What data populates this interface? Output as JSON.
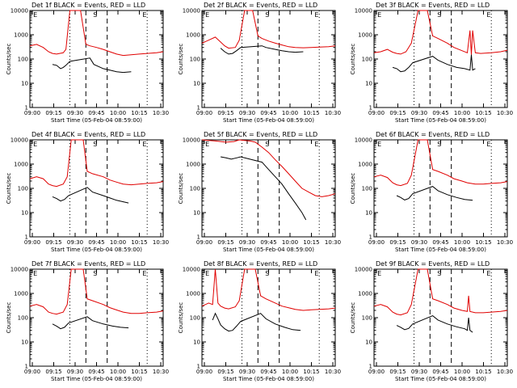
{
  "figure": {
    "xtick_labels": [
      "09:00",
      "09:15",
      "09:30",
      "09:45",
      "10:00",
      "10:15",
      "10:30"
    ],
    "ytick_labels": [
      "1",
      "10",
      "100",
      "1000",
      "10000"
    ],
    "xlabel": "Start Time (05-Feb-04 08:59:00)",
    "ylabel": "Counts/sec",
    "series_legend": {
      "black": "Events",
      "red": "LLD"
    },
    "colors": {
      "events": "#000000",
      "lld": "#e00000",
      "axes": "#000000"
    }
  },
  "chart_data": [
    {
      "type": "line",
      "title": "Det 1f BLACK = Events, RED = LLD",
      "markers": [
        "E",
        "S",
        "E"
      ],
      "xlabel": "Start Time (05-Feb-04 08:59:00)",
      "ylabel": "Counts/sec",
      "ylim": [
        1,
        10000
      ],
      "yscale": "log",
      "xlim_min": [
        0,
        100
      ],
      "series": [
        {
          "color": "red",
          "x": [
            0,
            5,
            10,
            14,
            17,
            20,
            25,
            27,
            30,
            38,
            42,
            45,
            50,
            55,
            60,
            65,
            70,
            76,
            82,
            88,
            95,
            100
          ],
          "values": [
            350,
            400,
            300,
            200,
            170,
            160,
            180,
            250,
            10000,
            10000,
            400,
            350,
            300,
            250,
            200,
            160,
            140,
            150,
            160,
            170,
            180,
            200
          ]
        },
        {
          "color": "black",
          "x": [
            17,
            20,
            23,
            25,
            27,
            30,
            45,
            48,
            55,
            60,
            65,
            70,
            76
          ],
          "values": [
            60,
            55,
            40,
            45,
            55,
            80,
            110,
            60,
            40,
            35,
            30,
            28,
            30
          ]
        }
      ]
    },
    {
      "type": "line",
      "title": "Det 2f BLACK = Events, RED = LLD",
      "markers": [
        "E",
        "S",
        "E"
      ],
      "xlabel": "Start Time (05-Feb-04 08:59:00)",
      "ylabel": "Counts/sec",
      "ylim": [
        1,
        10000
      ],
      "yscale": "log",
      "xlim_min": [
        0,
        100
      ],
      "series": [
        {
          "color": "red",
          "x": [
            0,
            5,
            10,
            14,
            17,
            20,
            25,
            28,
            32,
            38,
            42,
            45,
            50,
            55,
            60,
            65,
            70,
            76,
            82,
            88,
            95,
            100
          ],
          "values": [
            450,
            600,
            800,
            500,
            350,
            280,
            300,
            600,
            10000,
            10000,
            900,
            700,
            550,
            450,
            380,
            320,
            300,
            290,
            300,
            310,
            320,
            350
          ]
        },
        {
          "color": "black",
          "x": [
            14,
            17,
            20,
            23,
            26,
            29,
            45,
            48,
            55,
            60,
            65,
            70,
            76
          ],
          "values": [
            280,
            200,
            160,
            170,
            220,
            300,
            350,
            300,
            250,
            220,
            200,
            190,
            200
          ]
        }
      ]
    },
    {
      "type": "line",
      "title": "Det 3f BLACK = Events, RED = LLD",
      "markers": [
        "E",
        "S",
        "E"
      ],
      "xlabel": "Start Time (05-Feb-04 08:59:00)",
      "ylabel": "Counts/sec",
      "ylim": [
        1,
        10000
      ],
      "yscale": "log",
      "xlim_min": [
        0,
        100
      ],
      "series": [
        {
          "color": "red",
          "x": [
            0,
            5,
            10,
            14,
            17,
            20,
            24,
            28,
            33,
            40,
            44,
            48,
            55,
            60,
            66,
            70,
            72,
            73,
            74,
            76,
            80,
            88,
            95,
            100
          ],
          "values": [
            180,
            200,
            250,
            190,
            170,
            160,
            200,
            450,
            10000,
            10000,
            900,
            700,
            450,
            300,
            220,
            180,
            1500,
            150,
            1500,
            180,
            170,
            180,
            200,
            230
          ]
        },
        {
          "color": "black",
          "x": [
            14,
            17,
            20,
            23,
            26,
            29,
            44,
            48,
            55,
            62,
            68,
            72,
            73,
            74,
            76
          ],
          "values": [
            45,
            40,
            30,
            32,
            45,
            70,
            130,
            90,
            60,
            45,
            40,
            35,
            150,
            35,
            40
          ]
        }
      ]
    },
    {
      "type": "line",
      "title": "Det 4f BLACK = Events, RED = LLD",
      "markers": [
        "E",
        "S",
        "E"
      ],
      "xlabel": "Start Time (05-Feb-04 08:59:00)",
      "ylabel": "Counts/sec",
      "ylim": [
        1,
        10000
      ],
      "yscale": "log",
      "xlim_min": [
        0,
        100
      ],
      "series": [
        {
          "color": "red",
          "x": [
            0,
            5,
            10,
            14,
            17,
            20,
            25,
            28,
            31,
            40,
            43,
            47,
            55,
            60,
            65,
            70,
            76,
            82,
            88,
            95,
            100
          ],
          "values": [
            250,
            300,
            250,
            150,
            130,
            120,
            150,
            300,
            10000,
            10000,
            500,
            400,
            300,
            220,
            180,
            150,
            140,
            150,
            160,
            170,
            190
          ]
        },
        {
          "color": "black",
          "x": [
            17,
            20,
            23,
            26,
            29,
            43,
            47,
            55,
            60,
            65,
            70,
            74
          ],
          "values": [
            45,
            38,
            30,
            35,
            50,
            110,
            70,
            50,
            40,
            32,
            28,
            25
          ]
        }
      ]
    },
    {
      "type": "line",
      "title": "Det 5f BLACK = Events, RED = LLD",
      "markers": [
        "E",
        "S",
        "E"
      ],
      "xlabel": "Start Time (05-Feb-04 08:59:00)",
      "ylabel": "Counts/sec",
      "ylim": [
        1,
        10000
      ],
      "yscale": "log",
      "xlim_min": [
        0,
        100
      ],
      "series": [
        {
          "color": "red",
          "x": [
            0,
            10,
            18,
            24,
            28,
            32,
            36,
            40,
            45,
            50,
            55,
            60,
            65,
            70,
            75,
            80,
            85,
            90,
            95,
            100
          ],
          "values": [
            10000,
            9000,
            8000,
            8500,
            10000,
            9500,
            9000,
            8000,
            5000,
            3000,
            1500,
            800,
            400,
            200,
            100,
            70,
            50,
            45,
            50,
            60
          ]
        },
        {
          "color": "black",
          "x": [
            14,
            18,
            22,
            26,
            29,
            45,
            50,
            55,
            60,
            65,
            70,
            75,
            78
          ],
          "values": [
            2000,
            1800,
            1600,
            1800,
            2000,
            1200,
            600,
            300,
            150,
            60,
            25,
            10,
            5
          ]
        }
      ]
    },
    {
      "type": "line",
      "title": "Det 6f BLACK = Events, RED = LLD",
      "markers": [
        "E",
        "S",
        "E"
      ],
      "xlabel": "Start Time (05-Feb-04 08:59:00)",
      "ylabel": "Counts/sec",
      "ylim": [
        1,
        10000
      ],
      "yscale": "log",
      "xlim_min": [
        0,
        100
      ],
      "series": [
        {
          "color": "red",
          "x": [
            0,
            5,
            10,
            14,
            17,
            20,
            25,
            28,
            33,
            40,
            44,
            48,
            55,
            60,
            66,
            70,
            76,
            82,
            88,
            95,
            100
          ],
          "values": [
            300,
            350,
            280,
            170,
            140,
            130,
            160,
            350,
            10000,
            10000,
            600,
            500,
            350,
            250,
            200,
            170,
            150,
            150,
            160,
            170,
            190
          ]
        },
        {
          "color": "black",
          "x": [
            17,
            20,
            23,
            26,
            29,
            44,
            48,
            55,
            62,
            68,
            74
          ],
          "values": [
            50,
            42,
            33,
            38,
            60,
            120,
            80,
            55,
            42,
            35,
            32
          ]
        }
      ]
    },
    {
      "type": "line",
      "title": "Det 7f BLACK = Events, RED = LLD",
      "markers": [
        "E",
        "S",
        "E"
      ],
      "xlabel": "Start Time (05-Feb-04 08:59:00)",
      "ylabel": "Counts/sec",
      "ylim": [
        1,
        10000
      ],
      "yscale": "log",
      "xlim_min": [
        0,
        100
      ],
      "series": [
        {
          "color": "red",
          "x": [
            0,
            5,
            10,
            14,
            17,
            20,
            25,
            28,
            31,
            40,
            43,
            47,
            55,
            60,
            66,
            70,
            76,
            82,
            88,
            95,
            100
          ],
          "values": [
            300,
            350,
            280,
            170,
            150,
            140,
            170,
            350,
            10000,
            10000,
            600,
            500,
            350,
            260,
            200,
            170,
            150,
            150,
            160,
            170,
            190
          ]
        },
        {
          "color": "black",
          "x": [
            17,
            20,
            23,
            26,
            29,
            43,
            47,
            55,
            62,
            68,
            74
          ],
          "values": [
            55,
            45,
            35,
            40,
            60,
            110,
            75,
            55,
            45,
            40,
            38
          ]
        }
      ]
    },
    {
      "type": "line",
      "title": "Det 8f BLACK = Events, RED = LLD",
      "markers": [
        "E",
        "S",
        "E"
      ],
      "xlabel": "Start Time (05-Feb-04 08:59:00)",
      "ylabel": "Counts/sec",
      "ylim": [
        1,
        10000
      ],
      "yscale": "log",
      "xlim_min": [
        0,
        100
      ],
      "series": [
        {
          "color": "red",
          "x": [
            0,
            5,
            8,
            10,
            12,
            14,
            17,
            20,
            25,
            28,
            32,
            40,
            44,
            48,
            55,
            60,
            66,
            70,
            76,
            82,
            88,
            95,
            100
          ],
          "values": [
            300,
            400,
            350,
            10000,
            400,
            300,
            250,
            230,
            280,
            500,
            10000,
            10000,
            800,
            600,
            400,
            300,
            250,
            220,
            200,
            210,
            220,
            230,
            250
          ]
        },
        {
          "color": "black",
          "x": [
            8,
            10,
            12,
            14,
            17,
            20,
            23,
            26,
            29,
            44,
            48,
            55,
            62,
            68,
            74
          ],
          "values": [
            80,
            150,
            90,
            50,
            35,
            28,
            30,
            45,
            70,
            150,
            90,
            55,
            40,
            32,
            30
          ]
        }
      ]
    },
    {
      "type": "line",
      "title": "Det 9f BLACK = Events, RED = LLD",
      "markers": [
        "E",
        "S",
        "E"
      ],
      "xlabel": "Start Time (05-Feb-04 08:59:00)",
      "ylabel": "Counts/sec",
      "ylim": [
        1,
        10000
      ],
      "yscale": "log",
      "xlim_min": [
        0,
        100
      ],
      "series": [
        {
          "color": "red",
          "x": [
            0,
            5,
            10,
            14,
            17,
            20,
            25,
            28,
            33,
            40,
            44,
            48,
            55,
            60,
            66,
            70,
            71,
            72,
            76,
            82,
            88,
            95,
            100
          ],
          "values": [
            300,
            350,
            280,
            170,
            140,
            130,
            160,
            350,
            10000,
            10000,
            600,
            500,
            350,
            250,
            200,
            180,
            800,
            180,
            160,
            160,
            170,
            180,
            200
          ]
        },
        {
          "color": "black",
          "x": [
            17,
            20,
            23,
            26,
            29,
            44,
            48,
            55,
            62,
            68,
            70,
            71,
            72,
            74
          ],
          "values": [
            48,
            40,
            32,
            36,
            55,
            120,
            80,
            55,
            42,
            35,
            30,
            100,
            30,
            25
          ]
        }
      ]
    }
  ]
}
